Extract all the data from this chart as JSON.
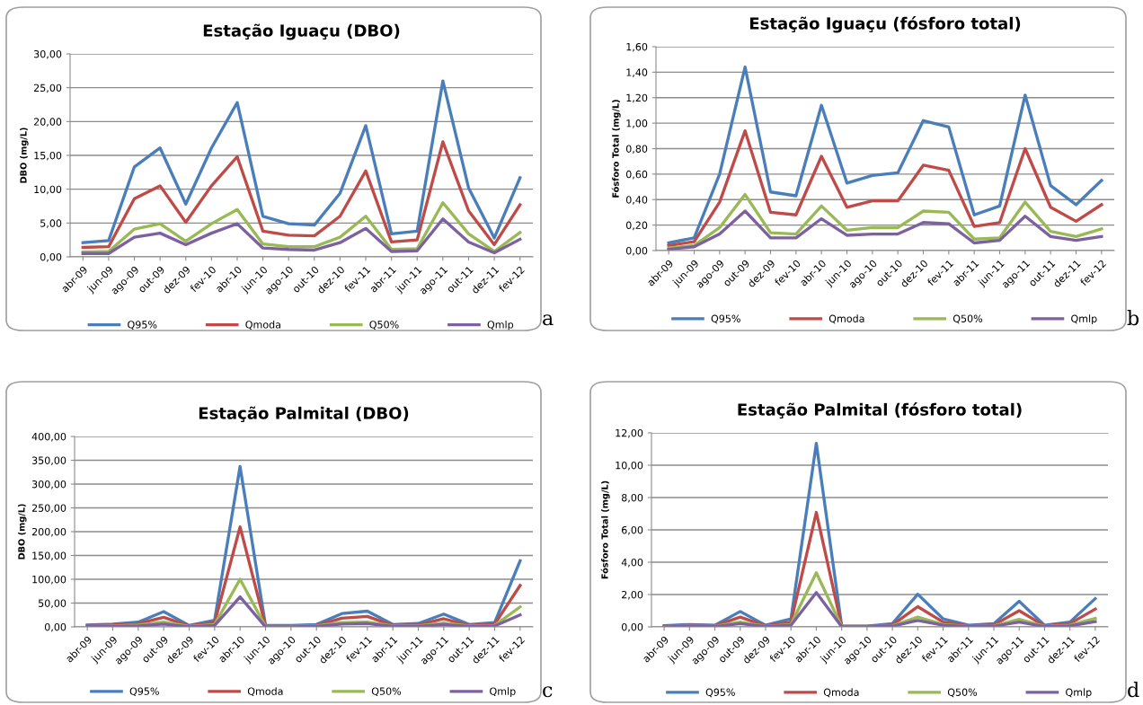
{
  "chart_data": [
    {
      "type": "line",
      "title": "Estação Iguaçu (DBO)",
      "ylabel": "DBO (mg/L)",
      "annotations": [
        "a"
      ],
      "categories": [
        "abr-09",
        "jun-09",
        "ago-09",
        "out-09",
        "dez-09",
        "fev-10",
        "abr-10",
        "jun-10",
        "ago-10",
        "out-10",
        "dez-10",
        "fev-11",
        "abr-11",
        "jun-11",
        "ago-11",
        "out-11",
        "dez-11",
        "fev-12"
      ],
      "series": [
        {
          "name": "Q95%",
          "color": "#4a7ebb",
          "values": [
            2.1,
            2.4,
            13.3,
            16.1,
            7.8,
            16.1,
            22.8,
            6.0,
            4.9,
            4.7,
            9.4,
            19.4,
            3.4,
            3.8,
            26.0,
            10.2,
            2.8,
            11.7
          ]
        },
        {
          "name": "Qmoda",
          "color": "#be4b48",
          "values": [
            1.4,
            1.5,
            8.6,
            10.5,
            5.1,
            10.5,
            14.8,
            3.8,
            3.2,
            3.1,
            6.0,
            12.7,
            2.2,
            2.5,
            17.0,
            6.8,
            1.8,
            7.7
          ]
        },
        {
          "name": "Q50%",
          "color": "#98b954",
          "values": [
            0.7,
            0.8,
            4.1,
            4.9,
            2.3,
            4.9,
            7.0,
            1.9,
            1.5,
            1.5,
            2.9,
            6.0,
            1.1,
            1.2,
            8.0,
            3.4,
            0.8,
            3.6
          ]
        },
        {
          "name": "Qmlp",
          "color": "#7d60a0",
          "values": [
            0.5,
            0.5,
            2.9,
            3.5,
            1.8,
            3.5,
            4.9,
            1.3,
            1.1,
            1.0,
            2.1,
            4.2,
            0.8,
            0.9,
            5.6,
            2.2,
            0.6,
            2.6
          ]
        }
      ],
      "ylim": [
        0,
        30
      ],
      "yticks": [
        {
          "value": 0,
          "label": "0,00"
        },
        {
          "value": 5,
          "label": "5,00"
        },
        {
          "value": 10,
          "label": "10,00"
        },
        {
          "value": 15,
          "label": "15,00"
        },
        {
          "value": 20,
          "label": "20,00"
        },
        {
          "value": 25,
          "label": "25,00"
        },
        {
          "value": 30,
          "label": "30,00"
        }
      ],
      "grid": "y",
      "legend": "bottom",
      "marker": "none",
      "line_style": "solid"
    },
    {
      "type": "line",
      "title": "Estação Iguaçu (fósforo total)",
      "ylabel": "Fósforo Total (mg/L)",
      "annotations": [
        "b"
      ],
      "categories": [
        "abr-09",
        "jun-09",
        "ago-09",
        "out-09",
        "dez-09",
        "fev-10",
        "abr-10",
        "jun-10",
        "ago-10",
        "out-10",
        "dez-10",
        "fev-11",
        "abr-11",
        "jun-11",
        "ago-11",
        "out-11",
        "dez-11",
        "fev-12"
      ],
      "series": [
        {
          "name": "Q95%",
          "color": "#4a7ebb",
          "values": [
            0.06,
            0.1,
            0.6,
            1.44,
            0.46,
            0.43,
            1.14,
            0.53,
            0.59,
            0.61,
            1.02,
            0.97,
            0.28,
            0.35,
            1.22,
            0.51,
            0.36,
            0.55
          ]
        },
        {
          "name": "Qmoda",
          "color": "#be4b48",
          "values": [
            0.04,
            0.07,
            0.38,
            0.94,
            0.3,
            0.28,
            0.74,
            0.34,
            0.39,
            0.39,
            0.67,
            0.63,
            0.19,
            0.22,
            0.8,
            0.34,
            0.23,
            0.36
          ]
        },
        {
          "name": "Q50%",
          "color": "#98b954",
          "values": [
            0.02,
            0.04,
            0.18,
            0.44,
            0.14,
            0.13,
            0.35,
            0.16,
            0.18,
            0.18,
            0.31,
            0.3,
            0.09,
            0.1,
            0.38,
            0.15,
            0.11,
            0.17
          ]
        },
        {
          "name": "Qmlp",
          "color": "#7d60a0",
          "values": [
            0.01,
            0.03,
            0.13,
            0.31,
            0.1,
            0.1,
            0.25,
            0.12,
            0.13,
            0.13,
            0.22,
            0.21,
            0.06,
            0.08,
            0.27,
            0.11,
            0.08,
            0.11
          ]
        }
      ],
      "ylim": [
        0,
        1.6
      ],
      "yticks": [
        {
          "value": 0,
          "label": "0,00"
        },
        {
          "value": 0.2,
          "label": "0,20"
        },
        {
          "value": 0.4,
          "label": "0,40"
        },
        {
          "value": 0.6,
          "label": "0,60"
        },
        {
          "value": 0.8,
          "label": "0,80"
        },
        {
          "value": 1.0,
          "label": "1,00"
        },
        {
          "value": 1.2,
          "label": "1,20"
        },
        {
          "value": 1.4,
          "label": "1,40"
        },
        {
          "value": 1.6,
          "label": "1,60"
        }
      ],
      "grid": "y",
      "legend": "bottom",
      "marker": "none",
      "line_style": "solid"
    },
    {
      "type": "line",
      "title": "Estação Palmital (DBO)",
      "ylabel": "DBO (mg/L)",
      "annotations": [
        "c"
      ],
      "categories": [
        "abr-09",
        "jun-09",
        "ago-09",
        "out-09",
        "dez-09",
        "fev-10",
        "abr-10",
        "jun-10",
        "ago-10",
        "out-10",
        "dez-10",
        "fev-11",
        "abr-11",
        "jun-11",
        "ago-11",
        "out-11",
        "dez-11",
        "fev-12"
      ],
      "series": [
        {
          "name": "Q95%",
          "color": "#4a7ebb",
          "values": [
            4,
            6,
            10,
            32,
            3,
            14,
            337,
            3,
            3,
            5,
            28,
            33,
            5,
            7,
            27,
            5,
            9,
            139
          ]
        },
        {
          "name": "Qmoda",
          "color": "#be4b48",
          "values": [
            3,
            4,
            7,
            20,
            2,
            9,
            210,
            2,
            2,
            3,
            18,
            22,
            3,
            4,
            17,
            3,
            6,
            87
          ]
        },
        {
          "name": "Q50%",
          "color": "#98b954",
          "values": [
            1,
            2,
            4,
            10,
            1,
            5,
            100,
            1,
            1,
            2,
            9,
            10,
            2,
            2,
            8,
            2,
            3,
            42
          ]
        },
        {
          "name": "Qmlp",
          "color": "#7d60a0",
          "values": [
            1,
            1,
            2,
            6,
            0,
            3,
            63,
            0,
            0,
            1,
            6,
            7,
            1,
            1,
            5,
            1,
            2,
            25
          ]
        }
      ],
      "ylim": [
        0,
        400
      ],
      "yticks": [
        {
          "value": 0,
          "label": "0,00"
        },
        {
          "value": 50,
          "label": "50,00"
        },
        {
          "value": 100,
          "label": "100,00"
        },
        {
          "value": 150,
          "label": "150,00"
        },
        {
          "value": 200,
          "label": "200,00"
        },
        {
          "value": 250,
          "label": "250,00"
        },
        {
          "value": 300,
          "label": "300,00"
        },
        {
          "value": 350,
          "label": "350,00"
        },
        {
          "value": 400,
          "label": "400,00"
        }
      ],
      "grid": "y",
      "legend": "bottom",
      "marker": "none",
      "line_style": "solid"
    },
    {
      "type": "line",
      "title": "Estação Palmital (fósforo total)",
      "ylabel": "Fósforo Total (mg/L)",
      "annotations": [
        "d"
      ],
      "categories": [
        "abr-09",
        "jun-09",
        "ago-09",
        "out-09",
        "dez-09",
        "fev-10",
        "abr-10",
        "jun-10",
        "ago-10",
        "out-10",
        "dez-10",
        "fev-11",
        "abr-11",
        "jun-11",
        "ago-11",
        "out-11",
        "dez-11",
        "fev-12"
      ],
      "series": [
        {
          "name": "Q95%",
          "color": "#4a7ebb",
          "values": [
            0.07,
            0.15,
            0.1,
            0.95,
            0.1,
            0.5,
            11.35,
            0.05,
            0.05,
            0.2,
            2.02,
            0.5,
            0.1,
            0.2,
            1.58,
            0.1,
            0.3,
            1.75
          ]
        },
        {
          "name": "Qmoda",
          "color": "#be4b48",
          "values": [
            0.05,
            0.1,
            0.07,
            0.6,
            0.06,
            0.3,
            7.08,
            0.03,
            0.03,
            0.12,
            1.25,
            0.3,
            0.06,
            0.12,
            1.0,
            0.06,
            0.2,
            1.1
          ]
        },
        {
          "name": "Q50%",
          "color": "#98b954",
          "values": [
            0.02,
            0.05,
            0.03,
            0.3,
            0.03,
            0.15,
            3.35,
            0.02,
            0.02,
            0.06,
            0.6,
            0.15,
            0.03,
            0.06,
            0.47,
            0.03,
            0.1,
            0.52
          ]
        },
        {
          "name": "Qmlp",
          "color": "#7d60a0",
          "values": [
            0.01,
            0.03,
            0.02,
            0.2,
            0.02,
            0.1,
            2.12,
            0.01,
            0.01,
            0.04,
            0.4,
            0.1,
            0.02,
            0.04,
            0.3,
            0.02,
            0.06,
            0.32
          ]
        }
      ],
      "ylim": [
        0,
        12
      ],
      "yticks": [
        {
          "value": 0,
          "label": "0,00"
        },
        {
          "value": 2,
          "label": "2,00"
        },
        {
          "value": 4,
          "label": "4,00"
        },
        {
          "value": 6,
          "label": "6,00"
        },
        {
          "value": 8,
          "label": "8,00"
        },
        {
          "value": 10,
          "label": "10,00"
        },
        {
          "value": 12,
          "label": "12,00"
        }
      ],
      "grid": "y",
      "legend": "bottom",
      "marker": "none",
      "line_style": "solid"
    }
  ]
}
